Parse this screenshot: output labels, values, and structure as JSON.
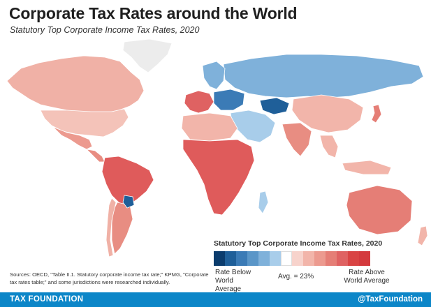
{
  "header": {
    "title": "Corporate Tax Rates around the World",
    "subtitle": "Statutory Top Corporate Income Tax Rates, 2020"
  },
  "legend": {
    "title": "Statutory Top Corporate Income Tax Rates, 2020",
    "low_label": "Rate Below World Average",
    "mid_label": "Avg. = 23%",
    "high_label": "Rate Above World Average",
    "colors": [
      "#0b3c6d",
      "#1f5f99",
      "#3b7bb6",
      "#5a96c8",
      "#7fb1da",
      "#a8cdea",
      "#ffffff",
      "#f7d3cc",
      "#f2b5aa",
      "#ec9a8f",
      "#e57e76",
      "#df6262",
      "#d94444",
      "#d43a3e"
    ]
  },
  "map": {
    "colors": {
      "north_america": "#f0b1a6",
      "usa": "#f4c3b9",
      "mexico": "#ec9a8f",
      "central_america": "#e88d82",
      "south_america": "#df5b5b",
      "paraguay": "#1f5f99",
      "argentina": "#e88d82",
      "chile": "#f0b1a6",
      "europe": "#7fb1da",
      "russia": "#7fb1da",
      "western_europe": "#df6262",
      "eastern_europe": "#3b7bb6",
      "middle_east": "#a8cdea",
      "central_asia": "#1f5f99",
      "africa": "#df5b5b",
      "north_africa": "#f2b5aa",
      "south_asia": "#e88d82",
      "china": "#f2b5aa",
      "japan": "#e57e76",
      "southeast_asia": "#f2b5aa",
      "australia": "#e57e76",
      "new_zealand": "#f2b5aa",
      "madagascar": "#a8cdea",
      "greenland": "#ececec",
      "no_data": "#cfcfcf"
    }
  },
  "sources": {
    "text": "Sources: OECD, \"Table II.1. Statutory corporate income tax rate;\" KPMG, \"Corporate tax rates table;\" and some jurisdictions were researched individually."
  },
  "footer": {
    "brand": "TAX FOUNDATION",
    "handle": "@TaxFoundation"
  }
}
